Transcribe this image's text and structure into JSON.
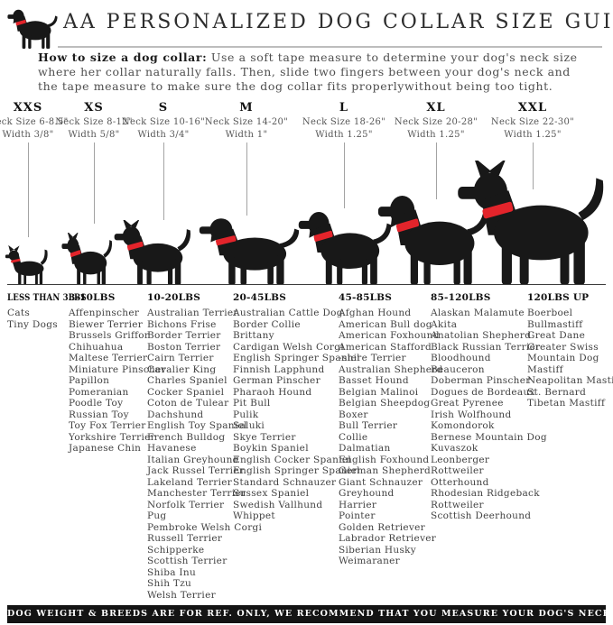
{
  "header": {
    "title": "AA PERSONALIZED DOG COLLAR SIZE GUIDE"
  },
  "intro": {
    "lead": "How to size a dog collar:",
    "text": " Use a soft tape measure to determine your dog's neck size where her collar naturally falls. Then, slide two fingers between your dog's neck and the tape measure to make sure the dog collar fits properlywithout being too tight."
  },
  "sizes": [
    {
      "label": "XXS",
      "neck": "Neck Size 6-8.5\"",
      "width": "Width 3/8\""
    },
    {
      "label": "XS",
      "neck": "Neck Size 8-12\"",
      "width": "Width 5/8\""
    },
    {
      "label": "S",
      "neck": "Neck Size 10-16\"",
      "width": "Width 3/4\""
    },
    {
      "label": "M",
      "neck": "Neck Size 14-20\"",
      "width": "Width 1\""
    },
    {
      "label": "L",
      "neck": "Neck Size 18-26\"",
      "width": "Width 1.25\""
    },
    {
      "label": "XL",
      "neck": "Neck Size 20-28\"",
      "width": "Width 1.25\""
    },
    {
      "label": "XXL",
      "neck": "Neck Size 22-30\"",
      "width": "Width 1.25\""
    }
  ],
  "weights": [
    {
      "header": "LESS THAN 3LBS",
      "breeds": [
        "Cats",
        "Tiny Dogs"
      ]
    },
    {
      "header": "3-10LBS",
      "breeds": [
        "Affenpinscher",
        "Biewer Terrier",
        "Brussels Griffon",
        "Chihuahua",
        "Maltese Terrier",
        "Miniature Pinscher",
        "Papillon",
        "Pomeranian",
        "Poodle Toy",
        "Russian Toy",
        "Toy Fox Terrier",
        "Yorkshire Terrier",
        "Japanese Chin"
      ]
    },
    {
      "header": "10-20LBS",
      "breeds": [
        "Australian Terrier",
        "Bichons Frise",
        "Border Terrier",
        "Boston Terrier",
        "Cairn Terrier",
        "Cavalier King",
        "Charles Spaniel",
        "Cocker Spaniel",
        "Coton de Tulear",
        "Dachshund",
        "English Toy Spaniel",
        "French Bulldog",
        "Havanese",
        "Italian Greyhound",
        "Jack Russel Terrier",
        "Lakeland Terrier",
        "Manchester Terrier",
        "Norfolk Terrier",
        "Pug",
        "Pembroke Welsh Corgi",
        "Russell Terrier",
        "Schipperke",
        "Scottish Terrier",
        "Shiba Inu",
        "Shih Tzu",
        "Welsh Terrier"
      ]
    },
    {
      "header": "20-45LBS",
      "breeds": [
        "Australian Cattle Dog",
        "Border Collie",
        "Brittany",
        "Cardigan Welsh Corgi",
        "English Springer Spaniel",
        "Finnish Lapphund",
        "German Pinscher",
        "Pharaoh Hound",
        "Pit Bull",
        "Pulik",
        "Saluki",
        "Skye Terrier",
        "Boykin Spaniel",
        "English Cocker Spaniel",
        "English Springer Spaniel",
        "Standard Schnauzer",
        "Sussex Spaniel",
        "Swedish Vallhund",
        "Whippet"
      ]
    },
    {
      "header": "45-85LBS",
      "breeds": [
        "Afghan Hound",
        "American Bull dog",
        "American Foxhound",
        "American Stafford",
        "-shire Terrier",
        "Australian Shepherd",
        "Basset Hound",
        "Belgian Malinoi",
        "Belgian Sheepdog",
        "Boxer",
        "Bull Terrier",
        "Collie",
        "Dalmatian",
        "English Foxhound",
        "German Shepherd",
        "Giant Schnauzer",
        "Greyhound",
        "Harrier",
        "Pointer",
        "Golden Retriever",
        "Labrador Retriever",
        "Siberian Husky",
        "Weimaraner"
      ]
    },
    {
      "header": "85-120LBS",
      "breeds": [
        "Alaskan Malamute",
        "Akita",
        "Anatolian Shepherd",
        "Black Russian Terrier",
        "Bloodhound",
        "Beauceron",
        "Doberman Pinscher",
        "Dogues de Bordeaux",
        "Great Pyrenee",
        "Irish Wolfhound",
        "Komondorok",
        "Bernese Mountain Dog",
        "Kuvaszok",
        "Leonberger",
        "Rottweiler",
        "Otterhound",
        "Rhodesian Ridgeback",
        "Rottweiler",
        "Scottish Deerhound"
      ]
    },
    {
      "header": "120LBS UP",
      "breeds": [
        "Boerboel",
        "Bullmastiff",
        "Great Dane",
        "Greater Swiss",
        "Mountain Dog",
        "Mastiff",
        "Neapolitan Mastiff",
        "St. Bernard",
        "Tibetan Mastiff"
      ]
    }
  ],
  "footer": {
    "text": "DOG WEIGHT & BREEDS ARE FOR REF. ONLY, WE RECOMMEND THAT YOU MEASURE YOUR DOG'S NECK BEFORE PURCHASE"
  },
  "colors": {
    "collar_red": "#e3242b",
    "silhouette_black": "#181818",
    "line_gray": "#a3a3a3",
    "footer_bg": "#141414"
  }
}
